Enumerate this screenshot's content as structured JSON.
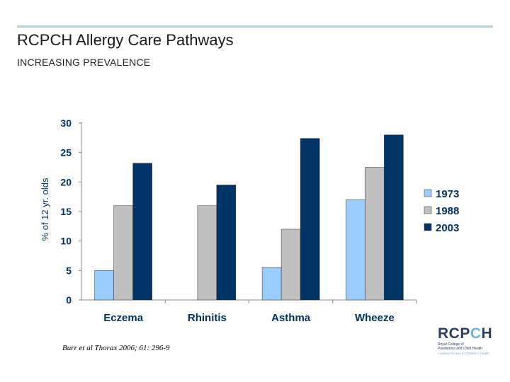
{
  "header": {
    "title": "RCPCH Allergy Care Pathways",
    "subtitle": "INCREASING PREVALENCE"
  },
  "chart_data": {
    "type": "bar",
    "categories": [
      "Eczema",
      "Rhinitis",
      "Asthma",
      "Wheeze"
    ],
    "series": [
      {
        "name": "1973",
        "color": "#99ccff",
        "values": [
          5,
          null,
          5.5,
          17
        ]
      },
      {
        "name": "1988",
        "color": "#c0c0c0",
        "values": [
          16,
          16,
          12,
          22.5
        ]
      },
      {
        "name": "2003",
        "color": "#003366",
        "values": [
          23.2,
          19.5,
          27.4,
          28
        ]
      }
    ],
    "ylabel": "% of 12 yr. olds",
    "ylim": [
      0,
      30
    ],
    "yticks": [
      "0",
      "5",
      "10",
      "15",
      "20",
      "25",
      "30"
    ],
    "grid": false,
    "legend_position": "right"
  },
  "footer": {
    "citation": "Burr et al Thorax 2006; 61: 296-9"
  },
  "logo": {
    "word_prefix": "RCP",
    "word_o": "C",
    "word_suffix": "H",
    "line1": "Royal College of",
    "line2": "Paediatrics and Child Health",
    "tagline": "Leading the way in Children's Health"
  }
}
